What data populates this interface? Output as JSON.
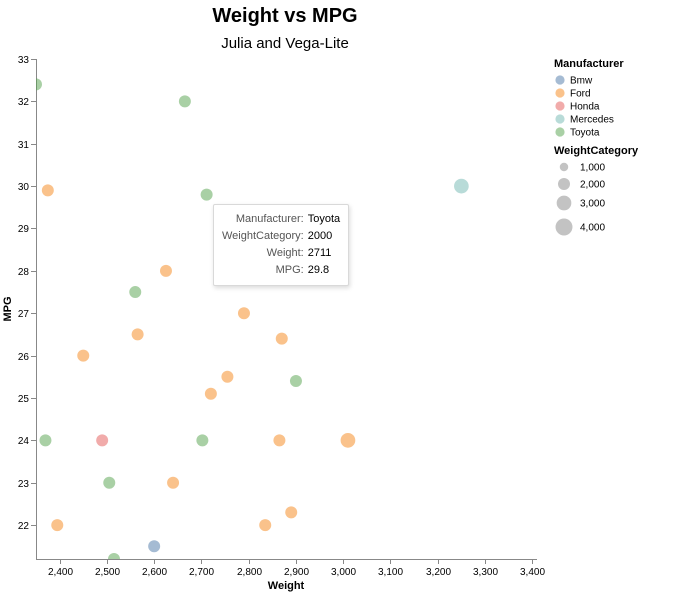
{
  "chart_data": {
    "type": "scatter",
    "title": "Weight vs MPG",
    "subtitle": "Julia and Vega-Lite",
    "xlabel": "Weight",
    "ylabel": "MPG",
    "xlim": [
      2350,
      3410
    ],
    "ylim": [
      21.2,
      33
    ],
    "x_ticks": [
      2400,
      2500,
      2600,
      2700,
      2800,
      2900,
      3000,
      3100,
      3200,
      3300,
      3400
    ],
    "x_tick_labels": [
      "2,400",
      "2,500",
      "2,600",
      "2,700",
      "2,800",
      "2,900",
      "3,000",
      "3,100",
      "3,200",
      "3,300",
      "3,400"
    ],
    "y_ticks": [
      22,
      23,
      24,
      25,
      26,
      27,
      28,
      29,
      30,
      31,
      32,
      33
    ],
    "y_tick_labels": [
      "22",
      "23",
      "24",
      "25",
      "26",
      "27",
      "28",
      "29",
      "30",
      "31",
      "32",
      "33"
    ],
    "grid": false,
    "color_legend": {
      "title": "Manufacturer",
      "placement": "right",
      "entries": [
        {
          "name": "Bmw",
          "color": "#4c78a8"
        },
        {
          "name": "Ford",
          "color": "#f58518"
        },
        {
          "name": "Honda",
          "color": "#e45756"
        },
        {
          "name": "Mercedes",
          "color": "#72b7b2"
        },
        {
          "name": "Toyota",
          "color": "#54a24b"
        }
      ]
    },
    "size_legend": {
      "title": "WeightCategory",
      "entries": [
        {
          "label": "1,000",
          "value": 1000
        },
        {
          "label": "2,000",
          "value": 2000
        },
        {
          "label": "3,000",
          "value": 3000
        },
        {
          "label": "4,000",
          "value": 4000
        }
      ]
    },
    "points": [
      {
        "manufacturer": "Toyota",
        "weight": 2350,
        "mpg": 32.4,
        "category": 2000
      },
      {
        "manufacturer": "Toyota",
        "weight": 2665,
        "mpg": 32.0,
        "category": 2000
      },
      {
        "manufacturer": "Ford",
        "weight": 2375,
        "mpg": 29.9,
        "category": 2000
      },
      {
        "manufacturer": "Toyota",
        "weight": 2711,
        "mpg": 29.8,
        "category": 2000
      },
      {
        "manufacturer": "Mercedes",
        "weight": 3250,
        "mpg": 30.0,
        "category": 3000
      },
      {
        "manufacturer": "Ford",
        "weight": 2625,
        "mpg": 28.0,
        "category": 2000
      },
      {
        "manufacturer": "Toyota",
        "weight": 2560,
        "mpg": 27.5,
        "category": 2000
      },
      {
        "manufacturer": "Ford",
        "weight": 2790,
        "mpg": 27.0,
        "category": 2000
      },
      {
        "manufacturer": "Ford",
        "weight": 2565,
        "mpg": 26.5,
        "category": 2000
      },
      {
        "manufacturer": "Ford",
        "weight": 2870,
        "mpg": 26.4,
        "category": 2000
      },
      {
        "manufacturer": "Ford",
        "weight": 2450,
        "mpg": 26.0,
        "category": 2000
      },
      {
        "manufacturer": "Ford",
        "weight": 2755,
        "mpg": 25.5,
        "category": 2000
      },
      {
        "manufacturer": "Toyota",
        "weight": 2900,
        "mpg": 25.4,
        "category": 2000
      },
      {
        "manufacturer": "Ford",
        "weight": 2720,
        "mpg": 25.1,
        "category": 2000
      },
      {
        "manufacturer": "Toyota",
        "weight": 2370,
        "mpg": 24.0,
        "category": 2000
      },
      {
        "manufacturer": "Honda",
        "weight": 2490,
        "mpg": 24.0,
        "category": 2000
      },
      {
        "manufacturer": "Toyota",
        "weight": 2702,
        "mpg": 24.0,
        "category": 2000
      },
      {
        "manufacturer": "Ford",
        "weight": 2865,
        "mpg": 24.0,
        "category": 2000
      },
      {
        "manufacturer": "Ford",
        "weight": 3010,
        "mpg": 24.0,
        "category": 3000
      },
      {
        "manufacturer": "Toyota",
        "weight": 2505,
        "mpg": 23.0,
        "category": 2000
      },
      {
        "manufacturer": "Ford",
        "weight": 2640,
        "mpg": 23.0,
        "category": 2000
      },
      {
        "manufacturer": "Ford",
        "weight": 2395,
        "mpg": 22.0,
        "category": 2000
      },
      {
        "manufacturer": "Ford",
        "weight": 2835,
        "mpg": 22.0,
        "category": 2000
      },
      {
        "manufacturer": "Ford",
        "weight": 2890,
        "mpg": 22.3,
        "category": 2000
      },
      {
        "manufacturer": "Bmw",
        "weight": 2600,
        "mpg": 21.5,
        "category": 2000
      },
      {
        "manufacturer": "Toyota",
        "weight": 2515,
        "mpg": 21.2,
        "category": 2000
      }
    ]
  },
  "tooltip": {
    "rows": [
      {
        "key": "Manufacturer:",
        "value": "Toyota"
      },
      {
        "key": "WeightCategory:",
        "value": "2000"
      },
      {
        "key": "Weight:",
        "value": "2711"
      },
      {
        "key": "MPG:",
        "value": "29.8"
      }
    ]
  }
}
